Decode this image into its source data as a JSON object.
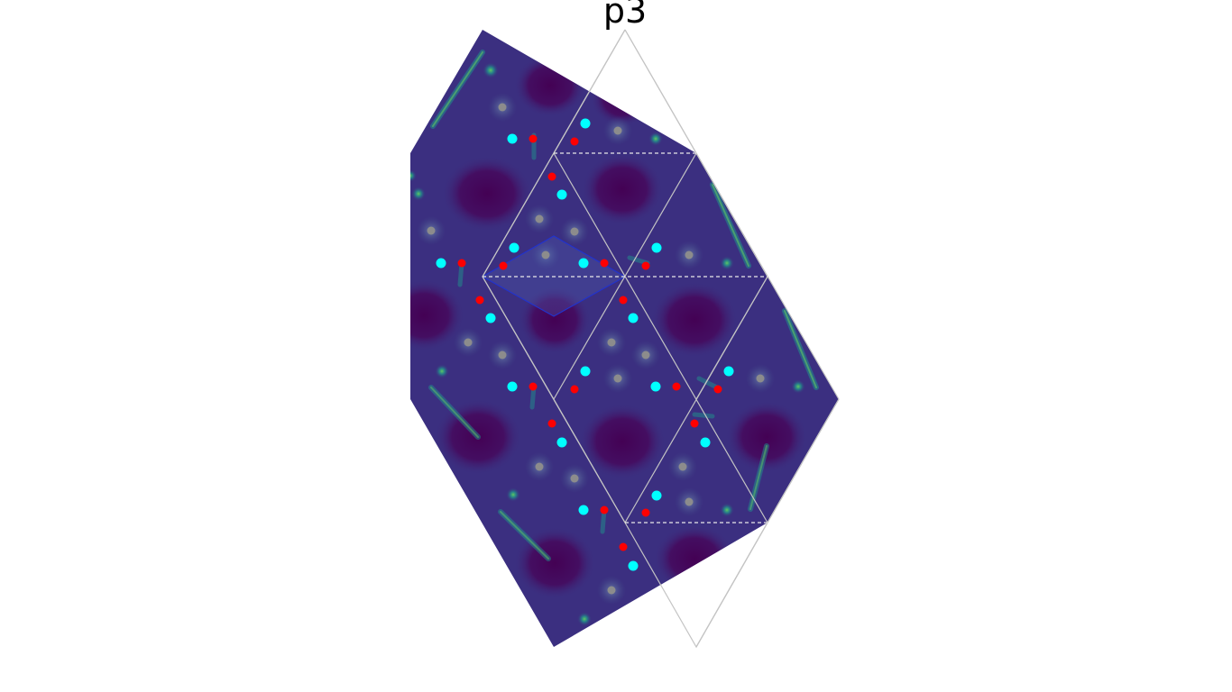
{
  "title": "p3",
  "colors": {
    "background": "#ffffff",
    "field_dark": "#440154",
    "field_mid": "#3b2f80",
    "field_light": "#3e4a89",
    "hotspot_teal": "#21918c",
    "hotspot_green": "#35b779",
    "lattice_line": "#c4c4c4",
    "cell_dashed": "#e8e8e8",
    "unit_cell_fill": "#4d5bb0",
    "unit_cell_stroke": "#2233cc",
    "point_cyan": "#00ffff",
    "point_red": "#ff0000",
    "point_gray": "#8c8c8c"
  }
}
